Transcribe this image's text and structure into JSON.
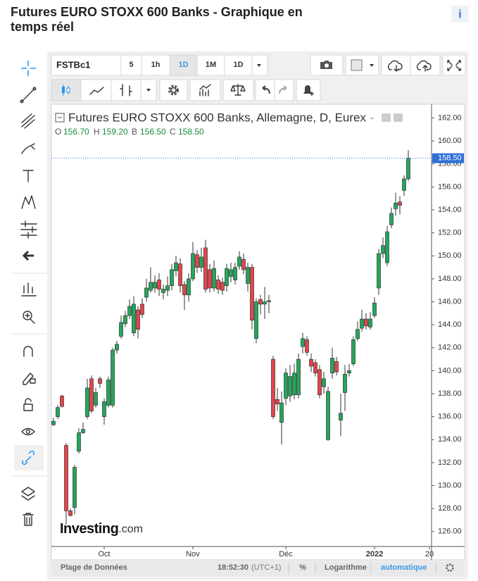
{
  "header": {
    "title_line1": "Futures EURO STOXX 600 Banks - Graphique en",
    "title_line2": "temps réel",
    "info": "i"
  },
  "toolbar": {
    "symbol": "FSTBc1",
    "intervals": [
      "5",
      "1h",
      "1D",
      "1M"
    ],
    "interval_menu": "1D"
  },
  "chart_data": {
    "type": "candlestick",
    "title": "Futures EURO STOXX 600 Banks, Allemagne, D, Eurex",
    "ohlc_legend": {
      "labels": [
        "O",
        "H",
        "B",
        "C"
      ],
      "values": [
        156.7,
        159.2,
        156.5,
        158.5
      ],
      "value_labels": [
        "156.70",
        "159.20",
        "156.50",
        "158.50"
      ]
    },
    "open": [
      135.3,
      136.0,
      137.8,
      133.5,
      127.8,
      128.1,
      133.0,
      134.6,
      136.0,
      139.3,
      137.0,
      139.3,
      136.0,
      137.0,
      137.0,
      141.8,
      143.0,
      144.1,
      144.8,
      143.3,
      145.3,
      145.8,
      146.4,
      147.0,
      147.2,
      147.9,
      146.8,
      147.0,
      147.4,
      148.7,
      149.3,
      147.5,
      146.6,
      148.0,
      150.1,
      149.0,
      150.7,
      148.8,
      147.2,
      147.9,
      147.7,
      147.4,
      148.2,
      147.9,
      149.1,
      149.7,
      147.6,
      149.0,
      142.8,
      146.2,
      145.8,
      146.0,
      141.0,
      137.5,
      135.5,
      137.6,
      137.8,
      137.9,
      137.9,
      142.1,
      142.7,
      141.0,
      140.7,
      140.1,
      138.6,
      134.0,
      139.8,
      140.8,
      135.7,
      138.1,
      139.8,
      140.6,
      142.8,
      143.7,
      144.5,
      143.8,
      144.8,
      147.2,
      150.2,
      149.4,
      152.7,
      154.1,
      154.7,
      155.7,
      156.7
    ],
    "high": [
      135.9,
      137.0,
      137.9,
      133.7,
      128.0,
      131.8,
      135.0,
      135.5,
      139.3,
      139.6,
      138.5,
      139.5,
      137.6,
      139.5,
      142.0,
      142.6,
      144.8,
      145.2,
      146.2,
      146.5,
      145.6,
      146.3,
      148.0,
      149.0,
      148.3,
      148.5,
      147.5,
      148.2,
      149.3,
      150.0,
      149.8,
      147.8,
      148.5,
      151.2,
      150.5,
      150.7,
      151.4,
      149.3,
      149.6,
      148.3,
      148.1,
      149.3,
      149.4,
      149.4,
      150.4,
      150.2,
      149.4,
      149.3,
      146.3,
      146.6,
      147.3,
      146.6,
      141.3,
      138.5,
      138.2,
      140.2,
      140.5,
      140.6,
      141.5,
      143.3,
      143.0,
      141.5,
      141.0,
      140.5,
      139.9,
      138.6,
      142.0,
      141.2,
      138.0,
      140.5,
      140.6,
      143.0,
      144.3,
      145.3,
      145.0,
      145.1,
      146.4,
      150.6,
      151.6,
      152.6,
      154.2,
      155.5,
      155.2,
      157.0,
      159.2
    ],
    "low": [
      135.2,
      135.8,
      136.8,
      126.6,
      127.3,
      127.5,
      132.8,
      134.5,
      135.8,
      136.3,
      136.8,
      138.5,
      135.3,
      136.8,
      136.8,
      141.5,
      142.8,
      143.8,
      144.5,
      143.0,
      142.8,
      144.6,
      146.0,
      146.8,
      146.8,
      146.5,
      146.2,
      146.5,
      147.0,
      148.2,
      146.8,
      145.3,
      146.0,
      147.8,
      148.5,
      148.6,
      146.8,
      146.8,
      146.9,
      146.7,
      146.6,
      146.9,
      147.7,
      147.5,
      148.8,
      148.4,
      146.9,
      143.6,
      142.4,
      144.9,
      144.5,
      145.0,
      135.8,
      136.5,
      133.6,
      137.0,
      137.3,
      137.5,
      137.6,
      141.5,
      141.3,
      139.9,
      139.5,
      137.6,
      138.0,
      133.9,
      139.3,
      139.6,
      134.3,
      136.5,
      139.5,
      140.4,
      142.6,
      143.4,
      143.6,
      143.6,
      144.6,
      146.6,
      149.8,
      149.1,
      152.4,
      153.5,
      153.6,
      155.2,
      156.5
    ],
    "close": [
      135.6,
      136.8,
      136.9,
      127.8,
      127.4,
      131.6,
      134.6,
      134.9,
      138.5,
      136.5,
      138.1,
      138.9,
      137.3,
      139.2,
      141.8,
      142.3,
      144.2,
      144.8,
      145.6,
      145.8,
      143.6,
      144.9,
      147.2,
      147.7,
      147.7,
      147.1,
      147.1,
      147.4,
      148.8,
      149.4,
      147.4,
      146.6,
      148.0,
      150.2,
      149.0,
      149.9,
      147.1,
      147.2,
      148.9,
      147.1,
      147.0,
      148.9,
      148.8,
      149.0,
      149.9,
      148.8,
      149.0,
      144.4,
      146.0,
      145.8,
      146.0,
      146.1,
      136.0,
      137.1,
      137.2,
      139.8,
      139.5,
      139.8,
      141.0,
      142.8,
      141.6,
      140.4,
      139.8,
      137.9,
      139.3,
      138.2,
      141.1,
      139.9,
      136.3,
      139.7,
      140.0,
      142.7,
      143.6,
      144.5,
      143.9,
      144.5,
      145.9,
      150.2,
      150.9,
      152.1,
      153.7,
      154.6,
      154.4,
      156.7,
      158.5
    ],
    "colors": {
      "up": "#24a65a",
      "down": "#e3454b",
      "last": "#2f6fd6"
    },
    "ylim": [
      124.7,
      163.2
    ],
    "yticks": [
      {
        "value": 126,
        "label": "126.00"
      },
      {
        "value": 128,
        "label": "128.00"
      },
      {
        "value": 130,
        "label": "130.00"
      },
      {
        "value": 132,
        "label": "132.00"
      },
      {
        "value": 134,
        "label": "134.00"
      },
      {
        "value": 136,
        "label": "136.00"
      },
      {
        "value": 138,
        "label": "138.00"
      },
      {
        "value": 140,
        "label": "140.00"
      },
      {
        "value": 142,
        "label": "142.00"
      },
      {
        "value": 144,
        "label": "144.00"
      },
      {
        "value": 146,
        "label": "146.00"
      },
      {
        "value": 148,
        "label": "148.00"
      },
      {
        "value": 150,
        "label": "150.00"
      },
      {
        "value": 152,
        "label": "152.00"
      },
      {
        "value": 154,
        "label": "154.00"
      },
      {
        "value": 156,
        "label": "156.00"
      },
      {
        "value": 158,
        "label": "158.00"
      },
      {
        "value": 160,
        "label": "160.00"
      },
      {
        "value": 162,
        "label": "162.00"
      }
    ],
    "xticks": [
      {
        "value": 12,
        "label": "Oct"
      },
      {
        "value": 33,
        "label": "Nov"
      },
      {
        "value": 55,
        "label": "Déc"
      },
      {
        "value": 76,
        "label": "2022"
      },
      {
        "value": 89,
        "label": "20"
      }
    ],
    "last_price": {
      "value": 158.5,
      "label": "158.50"
    }
  },
  "watermark": {
    "brand": "Investing",
    "suffix": ".com"
  },
  "footer": {
    "range": "Plage de Données",
    "time": "18:52:30",
    "timezone": "(UTC+1)",
    "percent": "%",
    "log": "Logarithme",
    "auto": "automatique"
  }
}
